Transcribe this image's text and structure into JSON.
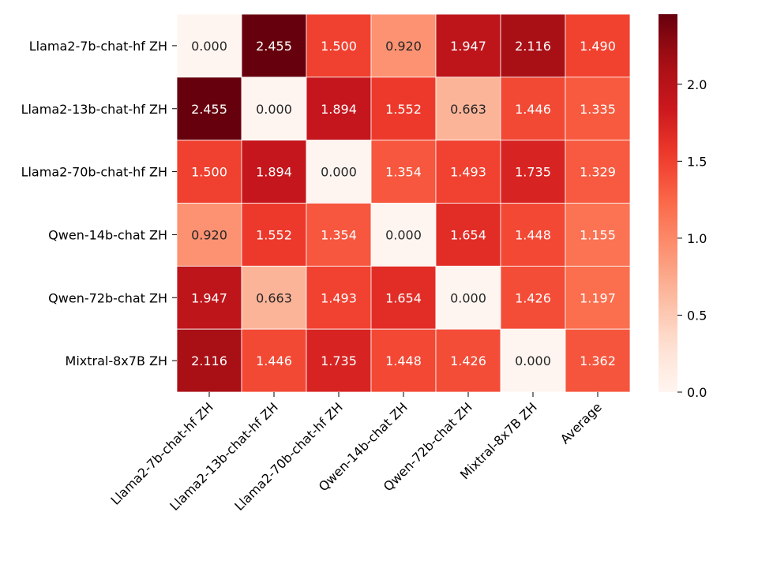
{
  "chart_data": {
    "type": "heatmap",
    "rows": [
      "Llama2-7b-chat-hf ZH",
      "Llama2-13b-chat-hf ZH",
      "Llama2-70b-chat-hf ZH",
      "Qwen-14b-chat ZH",
      "Qwen-72b-chat ZH",
      "Mixtral-8x7B ZH"
    ],
    "columns": [
      "Llama2-7b-chat-hf ZH",
      "Llama2-13b-chat-hf ZH",
      "Llama2-70b-chat-hf ZH",
      "Qwen-14b-chat ZH",
      "Qwen-72b-chat ZH",
      "Mixtral-8x7B ZH",
      "Average"
    ],
    "values": [
      [
        0.0,
        2.455,
        1.5,
        0.92,
        1.947,
        2.116,
        1.49
      ],
      [
        2.455,
        0.0,
        1.894,
        1.552,
        0.663,
        1.446,
        1.335
      ],
      [
        1.5,
        1.894,
        0.0,
        1.354,
        1.493,
        1.735,
        1.329
      ],
      [
        0.92,
        1.552,
        1.354,
        0.0,
        1.654,
        1.448,
        1.155
      ],
      [
        1.947,
        0.663,
        1.493,
        1.654,
        0.0,
        1.426,
        1.197
      ],
      [
        2.116,
        1.446,
        1.735,
        1.448,
        1.426,
        0.0,
        1.362
      ]
    ],
    "value_format": "0.000",
    "colormap": "Reds",
    "colorbar": {
      "range": [
        0.0,
        2.455
      ],
      "ticks": [
        0.0,
        0.5,
        1.0,
        1.5,
        2.0
      ],
      "tick_labels": [
        "0.0",
        "0.5",
        "1.0",
        "1.5",
        "2.0"
      ]
    },
    "title": "",
    "xlabel": "",
    "ylabel": ""
  }
}
